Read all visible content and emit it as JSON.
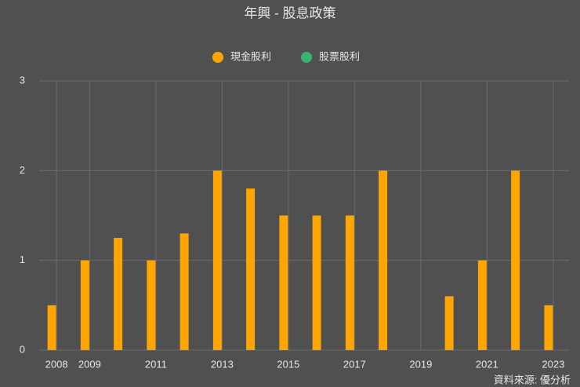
{
  "chart_data": {
    "type": "bar",
    "stacked": true,
    "title": "年興 - 股息政策",
    "source": "資料來源: 優分析",
    "categories": [
      "2008",
      "2009",
      null,
      "2011",
      null,
      "2013",
      null,
      "2015",
      null,
      "2017",
      null,
      "2019",
      null,
      "2021",
      null,
      "2023"
    ],
    "series": [
      {
        "name": "現金股利",
        "color": "#ffa500",
        "values": [
          0.5,
          1,
          1.25,
          1,
          1.3,
          2,
          1.8,
          1.5,
          1.5,
          1.5,
          2,
          0,
          0.6,
          1,
          2,
          0.5
        ]
      },
      {
        "name": "股票股利",
        "color": "#3cb371",
        "values": [
          0,
          0,
          0,
          0,
          0,
          0,
          0,
          0,
          0,
          0,
          0,
          0,
          0,
          0,
          0,
          0
        ]
      }
    ],
    "ylim": [
      0,
      3
    ],
    "yticks": [
      0,
      1,
      2,
      3
    ],
    "grid": true
  }
}
